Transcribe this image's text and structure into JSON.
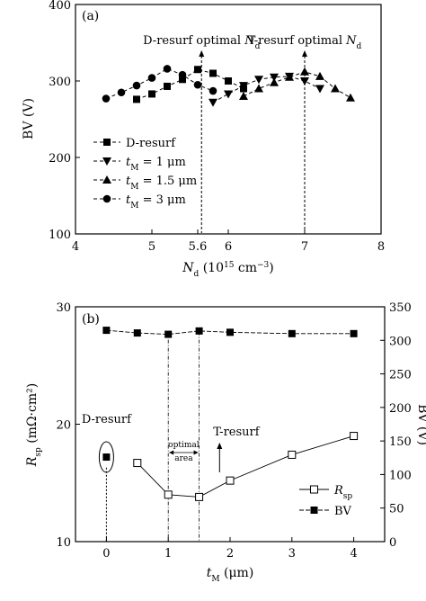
{
  "chart_data": [
    {
      "type": "line",
      "panel_label": "(a)",
      "xlabel": "N_d (10^15 cm^-3)",
      "xlabel_parts": {
        "var": "N",
        "sub": "d",
        "unit_pre": " (10",
        "sup1": "15",
        "unit_mid": " cm",
        "sup2": "−3",
        "unit_post": ")"
      },
      "ylabel": "BV (V)",
      "xlim": [
        4,
        8
      ],
      "ylim": [
        100,
        400
      ],
      "xticks": [
        4,
        5,
        5.6,
        6,
        7,
        8
      ],
      "xtick_labels": [
        "4",
        "5",
        "5.6",
        "6",
        "7",
        "8"
      ],
      "yticks": [
        100,
        200,
        300,
        400
      ],
      "ytick_labels": [
        "100",
        "200",
        "300",
        "400"
      ],
      "series": [
        {
          "name": "D-resurf",
          "marker": "square",
          "x": [
            4.8,
            5.0,
            5.2,
            5.4,
            5.6,
            5.8,
            6.0,
            6.2
          ],
          "y": [
            276,
            283,
            293,
            302,
            315,
            310,
            300,
            290
          ]
        },
        {
          "name": "t_M = 1 μm",
          "marker": "triangle-down",
          "x": [
            5.8,
            6.0,
            6.2,
            6.4,
            6.6,
            6.8,
            7.0,
            7.2
          ],
          "y": [
            272,
            283,
            294,
            302,
            305,
            306,
            300,
            290
          ]
        },
        {
          "name": "t_M = 1.5 μm",
          "marker": "triangle-up",
          "x": [
            6.2,
            6.4,
            6.6,
            6.8,
            7.0,
            7.2,
            7.4,
            7.6
          ],
          "y": [
            280,
            290,
            298,
            305,
            312,
            306,
            290,
            278
          ]
        },
        {
          "name": "t_M = 3 μm",
          "marker": "circle",
          "x": [
            4.4,
            4.6,
            4.8,
            5.0,
            5.2,
            5.4,
            5.6,
            5.8
          ],
          "y": [
            277,
            285,
            294,
            304,
            316,
            308,
            295,
            287
          ]
        }
      ],
      "legend": [
        {
          "text": "D-resurf",
          "var": "",
          "sub": ""
        },
        {
          "text": " = 1 μm",
          "var": "t",
          "sub": "M"
        },
        {
          "text": " = 1.5 μm",
          "var": "t",
          "sub": "M"
        },
        {
          "text": " = 3 μm",
          "var": "t",
          "sub": "M"
        }
      ],
      "annotations": [
        {
          "text": "D-resurf optimal ",
          "var": "N",
          "sub": "d",
          "x": 5.65
        },
        {
          "text": "T-resurf optimal ",
          "var": "N",
          "sub": "d",
          "x": 7.0
        }
      ]
    },
    {
      "type": "line",
      "panel_label": "(b)",
      "xlabel": "t_M (μm)",
      "xlabel_parts": {
        "var": "t",
        "sub": "M",
        "unit": " (μm)"
      },
      "ylabel_left": "R_sp (mΩ·cm²)",
      "ylabel_left_parts": {
        "var": "R",
        "sub": "sp",
        "unit": " (mΩ·cm²)"
      },
      "ylabel_right": "BV (V)",
      "xlim": [
        -0.5,
        4.5
      ],
      "ylim_left": [
        10,
        30
      ],
      "ylim_right": [
        0,
        350
      ],
      "xticks": [
        0,
        1,
        2,
        3,
        4
      ],
      "xtick_labels": [
        "0",
        "1",
        "2",
        "3",
        "4"
      ],
      "yticks_left": [
        10,
        20,
        30
      ],
      "ytick_labels_left": [
        "10",
        "20",
        "30"
      ],
      "yticks_right": [
        0,
        50,
        100,
        150,
        200,
        250,
        300,
        350
      ],
      "ytick_labels_right": [
        "0",
        "50",
        "100",
        "150",
        "200",
        "250",
        "300",
        "350"
      ],
      "series": [
        {
          "name": "R_sp",
          "axis": "left",
          "marker": "open-square",
          "x": [
            0.5,
            1.0,
            1.5,
            2.0,
            3.0,
            4.0
          ],
          "y": [
            16.7,
            14.0,
            13.8,
            15.2,
            17.4,
            19.0
          ]
        },
        {
          "name": "BV",
          "axis": "right",
          "marker": "filled-square",
          "x": [
            0,
            0.5,
            1.0,
            1.5,
            2.0,
            3.0,
            4.0
          ],
          "y": [
            315,
            311,
            309,
            314,
            312,
            310,
            310
          ]
        }
      ],
      "single_point": {
        "name": "D-resurf R_sp",
        "x": 0,
        "y": 17.2
      },
      "legend": [
        {
          "var": "R",
          "sub": "sp",
          "text": ""
        },
        {
          "var": "",
          "sub": "",
          "text": "BV"
        }
      ],
      "annotations": [
        {
          "text": "D-resurf"
        },
        {
          "text": "T-resurf"
        },
        {
          "text": "optimal"
        },
        {
          "text": "area"
        }
      ]
    }
  ]
}
